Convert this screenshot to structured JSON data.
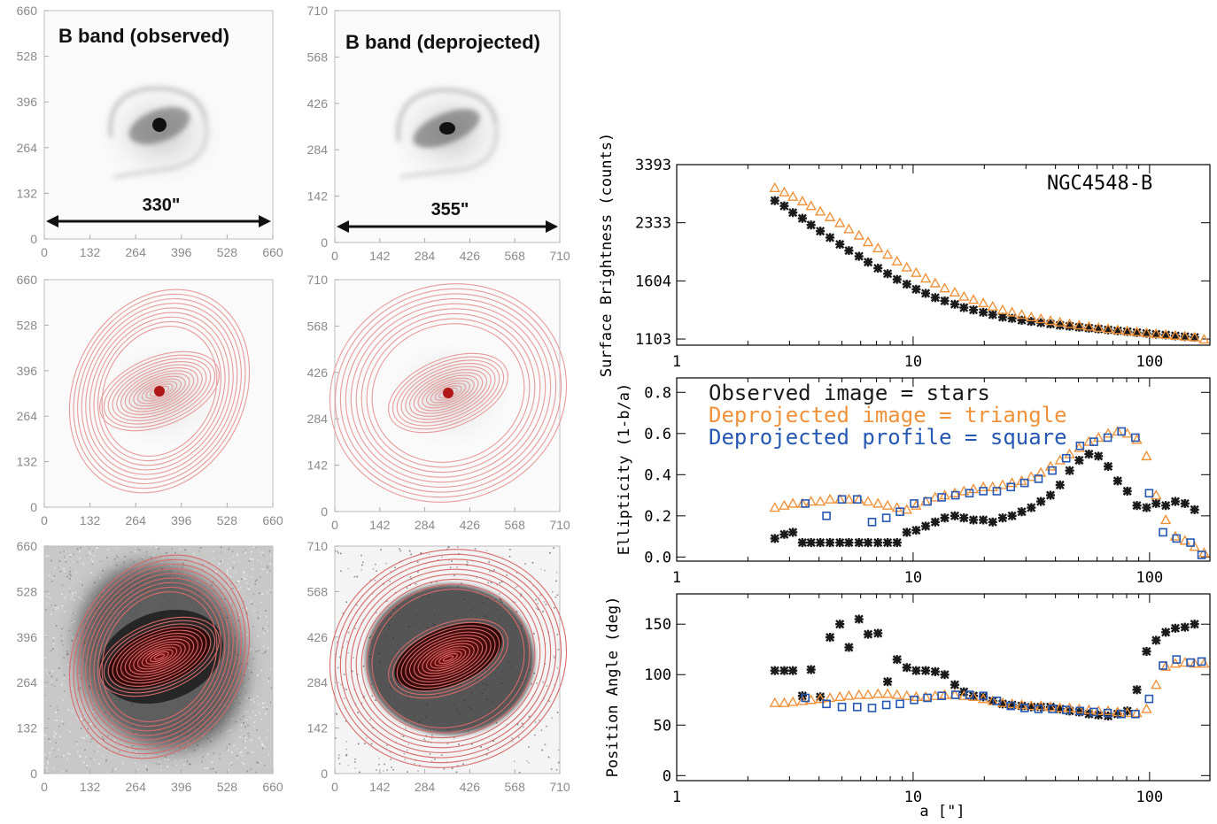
{
  "colors": {
    "stars": "#1a1a1a",
    "triangle": "#f0923a",
    "square": "#2558b3",
    "ellipse": "#e89a9a",
    "axis_gray": "#9a9a9a"
  },
  "image_panels": {
    "titles": {
      "observed": "B band (observed)",
      "deprojected": "B band (deprojected)"
    },
    "scale_labels": {
      "observed": "330\"",
      "deprojected": "355\""
    },
    "ticks_observed": [
      "0",
      "132",
      "264",
      "396",
      "528",
      "660"
    ],
    "ticks_deprojected": [
      "0",
      "142",
      "284",
      "426",
      "568",
      "710"
    ]
  },
  "chart_data": [
    {
      "type": "scatter",
      "annotation": "NGC4548-B",
      "ylabel": "Surface Brightness (counts)",
      "xscale": "log",
      "xlim": [
        1,
        180
      ],
      "ylim": [
        1060,
        3393
      ],
      "xticks": [
        "1",
        "10",
        "100"
      ],
      "yticks": [
        "1103",
        "1604",
        "2333",
        "3393"
      ],
      "series": [
        {
          "marker": "star",
          "color": "#1a1a1a",
          "x": [
            2.6,
            2.85,
            3.1,
            3.4,
            3.7,
            4.05,
            4.45,
            4.9,
            5.35,
            5.9,
            6.45,
            7.1,
            7.8,
            8.55,
            9.4,
            10.3,
            11.3,
            12.4,
            13.6,
            15.0,
            16.4,
            18.0,
            19.8,
            21.7,
            23.9,
            26.2,
            28.8,
            31.6,
            34.7,
            38.1,
            41.8,
            45.9,
            50.4,
            55.4,
            60.8,
            66.8,
            73.3,
            80.5,
            88.4,
            97.1,
            106.6,
            117.1,
            128.5,
            141.1,
            155
          ],
          "y": [
            2690,
            2600,
            2490,
            2400,
            2300,
            2210,
            2120,
            2030,
            1950,
            1880,
            1810,
            1740,
            1680,
            1620,
            1570,
            1520,
            1480,
            1440,
            1410,
            1380,
            1350,
            1330,
            1310,
            1290,
            1270,
            1260,
            1245,
            1235,
            1225,
            1215,
            1205,
            1198,
            1190,
            1183,
            1177,
            1170,
            1163,
            1157,
            1150,
            1144,
            1138,
            1132,
            1126,
            1120,
            1115
          ]
        },
        {
          "marker": "triangle",
          "color": "#f0923a",
          "x": [
            2.6,
            2.85,
            3.1,
            3.4,
            3.7,
            4.05,
            4.45,
            4.9,
            5.35,
            5.9,
            6.45,
            7.1,
            7.8,
            8.55,
            9.4,
            10.3,
            11.3,
            12.4,
            13.6,
            15.0,
            16.4,
            18.0,
            19.8,
            21.7,
            23.9,
            26.2,
            28.8,
            31.6,
            34.7,
            38.1,
            41.8,
            45.9,
            50.4,
            55.4,
            60.8,
            66.8,
            73.3,
            80.5,
            88.4,
            97.1,
            106.6,
            117.1,
            128.5,
            141.1,
            155,
            170
          ],
          "y": [
            2920,
            2840,
            2760,
            2680,
            2600,
            2510,
            2420,
            2330,
            2240,
            2150,
            2060,
            1980,
            1900,
            1820,
            1750,
            1690,
            1630,
            1580,
            1530,
            1490,
            1450,
            1420,
            1390,
            1360,
            1330,
            1310,
            1290,
            1270,
            1255,
            1240,
            1228,
            1216,
            1205,
            1195,
            1186,
            1177,
            1169,
            1161,
            1154,
            1147,
            1140,
            1133,
            1127,
            1121,
            1115,
            1100
          ]
        }
      ]
    },
    {
      "type": "scatter",
      "ylabel": "Ellipticity (1-b/a)",
      "xscale": "log",
      "xlim": [
        1,
        180
      ],
      "ylim": [
        -0.02,
        0.87
      ],
      "xticks": [
        "1",
        "10",
        "100"
      ],
      "yticks": [
        "0.0",
        "0.2",
        "0.4",
        "0.6",
        "0.8"
      ],
      "legend": [
        {
          "text": "Observed image = stars",
          "color": "#1a1a1a"
        },
        {
          "text": "Deprojected image = triangle",
          "color": "#f0923a"
        },
        {
          "text": "Deprojected profile = square",
          "color": "#2558b3"
        }
      ],
      "series": [
        {
          "marker": "star",
          "color": "#1a1a1a",
          "x": [
            2.6,
            2.85,
            3.1,
            3.4,
            3.7,
            4.05,
            4.45,
            4.9,
            5.35,
            5.9,
            6.45,
            7.1,
            7.8,
            8.55,
            9.4,
            10.3,
            11.3,
            12.4,
            13.6,
            15.0,
            16.4,
            18.0,
            19.8,
            21.7,
            23.9,
            26.2,
            28.8,
            31.6,
            34.7,
            38.1,
            41.8,
            45.9,
            50.4,
            55.4,
            60.8,
            66.8,
            73.3,
            80.5,
            88.4,
            97.1,
            106.6,
            117.1,
            128.5,
            141.1,
            155
          ],
          "y": [
            0.09,
            0.11,
            0.12,
            0.07,
            0.07,
            0.07,
            0.07,
            0.07,
            0.07,
            0.07,
            0.07,
            0.07,
            0.07,
            0.07,
            0.12,
            0.13,
            0.15,
            0.17,
            0.19,
            0.2,
            0.19,
            0.18,
            0.18,
            0.17,
            0.19,
            0.2,
            0.22,
            0.24,
            0.27,
            0.3,
            0.35,
            0.42,
            0.47,
            0.5,
            0.49,
            0.44,
            0.37,
            0.32,
            0.25,
            0.24,
            0.26,
            0.25,
            0.27,
            0.26,
            0.23
          ]
        },
        {
          "marker": "triangle",
          "color": "#f0923a",
          "x": [
            2.6,
            2.85,
            3.1,
            3.4,
            3.7,
            4.05,
            4.45,
            4.9,
            5.35,
            5.9,
            6.45,
            7.1,
            7.8,
            8.55,
            9.4,
            10.3,
            11.3,
            12.4,
            13.6,
            15.0,
            16.4,
            18.0,
            19.8,
            21.7,
            23.9,
            26.2,
            28.8,
            31.6,
            34.7,
            38.1,
            41.8,
            45.9,
            50.4,
            55.4,
            60.8,
            66.8,
            73.3,
            80.5,
            88.4,
            97.1,
            106.6,
            117.1,
            128.5,
            141.1,
            155,
            170
          ],
          "y": [
            0.24,
            0.25,
            0.26,
            0.26,
            0.27,
            0.27,
            0.28,
            0.28,
            0.28,
            0.28,
            0.27,
            0.26,
            0.25,
            0.24,
            0.23,
            0.25,
            0.27,
            0.29,
            0.3,
            0.31,
            0.32,
            0.33,
            0.34,
            0.34,
            0.35,
            0.36,
            0.37,
            0.39,
            0.41,
            0.44,
            0.47,
            0.5,
            0.53,
            0.56,
            0.58,
            0.6,
            0.61,
            0.6,
            0.57,
            0.49,
            0.3,
            0.18,
            0.1,
            0.08,
            0.05,
            0.02
          ]
        },
        {
          "marker": "square",
          "color": "#2558b3",
          "x": [
            3.5,
            4.3,
            5.0,
            5.8,
            6.7,
            7.7,
            8.8,
            10.1,
            11.5,
            13.2,
            15.1,
            17.3,
            19.8,
            22.6,
            25.9,
            29.6,
            33.9,
            38.8,
            44.4,
            50.8,
            58.1,
            66.5,
            76.1,
            87.1,
            99.6,
            114,
            130,
            149,
            166
          ],
          "y": [
            0.26,
            0.2,
            0.28,
            0.28,
            0.17,
            0.19,
            0.22,
            0.26,
            0.27,
            0.29,
            0.3,
            0.31,
            0.32,
            0.32,
            0.34,
            0.36,
            0.38,
            0.42,
            0.48,
            0.54,
            0.56,
            0.58,
            0.61,
            0.58,
            0.31,
            0.12,
            0.09,
            0.07,
            0.01
          ]
        }
      ]
    },
    {
      "type": "scatter",
      "xlabel": "a [\"]",
      "ylabel": "Position Angle (deg)",
      "xscale": "log",
      "xlim": [
        1,
        180
      ],
      "ylim": [
        -5,
        180
      ],
      "xticks": [
        "1",
        "10",
        "100"
      ],
      "yticks": [
        "0",
        "50",
        "100",
        "150"
      ],
      "series": [
        {
          "marker": "star",
          "color": "#1a1a1a",
          "x": [
            2.6,
            2.85,
            3.1,
            3.4,
            3.7,
            4.05,
            4.45,
            4.9,
            5.35,
            5.9,
            6.45,
            7.1,
            7.8,
            8.55,
            9.4,
            10.3,
            11.3,
            12.4,
            13.6,
            15.0,
            16.4,
            18.0,
            19.8,
            21.7,
            23.9,
            26.2,
            28.8,
            31.6,
            34.7,
            38.1,
            41.8,
            45.9,
            50.4,
            55.4,
            60.8,
            66.8,
            73.3,
            80.5,
            88.4,
            97.1,
            106.6,
            117.1,
            128.5,
            141.1,
            155
          ],
          "y": [
            104,
            104,
            104,
            79,
            105,
            78,
            137,
            150,
            127,
            155,
            140,
            141,
            93,
            115,
            107,
            104,
            104,
            103,
            100,
            90,
            83,
            79,
            78,
            74,
            71,
            70,
            69,
            68,
            68,
            68,
            66,
            64,
            63,
            61,
            60,
            59,
            61,
            64,
            85,
            123,
            134,
            142,
            146,
            147,
            150
          ]
        },
        {
          "marker": "triangle",
          "color": "#f0923a",
          "x": [
            2.6,
            2.85,
            3.1,
            3.4,
            3.7,
            4.05,
            4.45,
            4.9,
            5.35,
            5.9,
            6.45,
            7.1,
            7.8,
            8.55,
            9.4,
            10.3,
            11.3,
            12.4,
            13.6,
            15.0,
            16.4,
            18.0,
            19.8,
            21.7,
            23.9,
            26.2,
            28.8,
            31.6,
            34.7,
            38.1,
            41.8,
            45.9,
            50.4,
            55.4,
            60.8,
            66.8,
            73.3,
            80.5,
            88.4,
            97.1,
            106.6,
            117.1,
            128.5,
            141.1,
            155,
            170
          ],
          "y": [
            72,
            72,
            73,
            74,
            75,
            76,
            77,
            78,
            79,
            80,
            80,
            81,
            81,
            80,
            79,
            78,
            78,
            79,
            80,
            80,
            79,
            78,
            76,
            74,
            72,
            71,
            70,
            69,
            69,
            68,
            67,
            67,
            66,
            65,
            64,
            64,
            63,
            62,
            62,
            66,
            90,
            108,
            111,
            112,
            111,
            111
          ]
        },
        {
          "marker": "square",
          "color": "#2558b3",
          "x": [
            3.5,
            4.3,
            5.0,
            5.8,
            6.7,
            7.7,
            8.8,
            10.1,
            11.5,
            13.2,
            15.1,
            17.3,
            19.8,
            22.6,
            25.9,
            29.6,
            33.9,
            38.8,
            44.4,
            50.8,
            58.1,
            66.5,
            76.1,
            87.1,
            99.6,
            114,
            130,
            149,
            166
          ],
          "y": [
            77,
            71,
            68,
            68,
            67,
            70,
            71,
            75,
            77,
            79,
            80,
            80,
            79,
            74,
            69,
            67,
            66,
            66,
            65,
            64,
            63,
            62,
            61,
            61,
            76,
            109,
            115,
            112,
            113
          ]
        }
      ]
    }
  ]
}
